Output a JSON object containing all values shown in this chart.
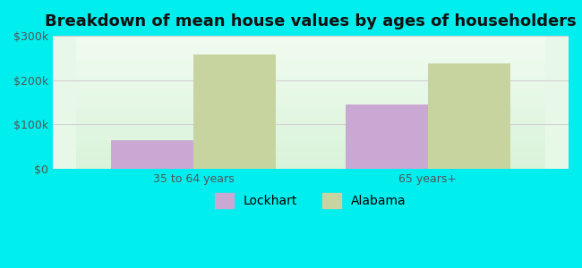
{
  "title": "Breakdown of mean house values by ages of householders",
  "categories": [
    "35 to 64 years",
    "65 years+"
  ],
  "lockhart_values": [
    65000,
    145000
  ],
  "alabama_values": [
    257000,
    238000
  ],
  "lockhart_color": "#c9a8d4",
  "alabama_color": "#c8d4a0",
  "background_color": "#00eeee",
  "plot_bg_color": "#e8f8e8",
  "ylim": [
    0,
    300000
  ],
  "yticks": [
    0,
    100000,
    200000,
    300000
  ],
  "ytick_labels": [
    "$0",
    "$100k",
    "$200k",
    "$300k"
  ],
  "legend_labels": [
    "Lockhart",
    "Alabama"
  ],
  "bar_width": 0.35,
  "title_fontsize": 13,
  "tick_fontsize": 9,
  "legend_fontsize": 10
}
